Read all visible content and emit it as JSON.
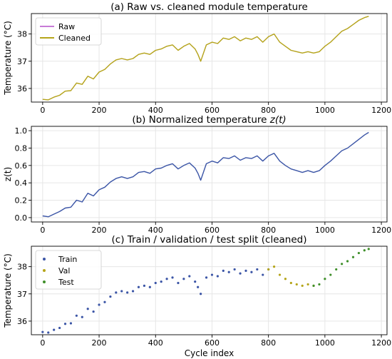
{
  "colors": {
    "raw": "#c77bd6",
    "cleaned": "#b5a51a",
    "normalized": "#3b55a6",
    "train": "#3b55a6",
    "val": "#b5a51a",
    "test": "#3f8f2a"
  },
  "chart_data": [
    {
      "type": "line",
      "title": "(a) Raw vs. cleaned module temperature",
      "xlabel": "",
      "ylabel": "Temperature (°C)",
      "xlim": [
        -40,
        1220
      ],
      "ylim": [
        35.5,
        38.75
      ],
      "xticks": [
        0,
        200,
        400,
        600,
        800,
        1000,
        1200
      ],
      "yticks": [
        36,
        37,
        38
      ],
      "xtick_labels": [
        "0",
        "200",
        "400",
        "600",
        "800",
        "1000",
        "1200"
      ],
      "ytick_labels": [
        "36",
        "37",
        "38"
      ],
      "grid": true,
      "legend": "top-left",
      "legend_entries": [
        "Raw",
        "Cleaned"
      ],
      "series": [
        {
          "name": "Raw",
          "x": [
            0,
            20,
            40,
            60,
            80,
            100,
            120,
            140,
            160,
            180,
            200,
            220,
            240,
            260,
            280,
            300,
            320,
            340,
            360,
            380,
            400,
            420,
            440,
            460,
            480,
            500,
            520,
            540,
            550,
            560,
            580,
            600,
            620,
            640,
            660,
            680,
            700,
            720,
            740,
            760,
            780,
            800,
            820,
            840,
            860,
            880,
            900,
            920,
            940,
            960,
            980,
            1000,
            1020,
            1040,
            1060,
            1080,
            1100,
            1120,
            1140,
            1155
          ],
          "y": [
            35.6,
            35.58,
            35.68,
            35.75,
            35.9,
            35.92,
            36.2,
            36.15,
            36.45,
            36.35,
            36.6,
            36.7,
            36.9,
            37.05,
            37.1,
            37.05,
            37.1,
            37.25,
            37.3,
            37.25,
            37.4,
            37.45,
            37.55,
            37.6,
            37.4,
            37.55,
            37.65,
            37.45,
            37.25,
            37.0,
            37.6,
            37.7,
            37.65,
            37.85,
            37.8,
            37.9,
            37.75,
            37.85,
            37.8,
            37.9,
            37.7,
            37.9,
            38.0,
            37.7,
            37.55,
            37.4,
            37.35,
            37.3,
            37.35,
            37.3,
            37.35,
            37.55,
            37.7,
            37.9,
            38.1,
            38.2,
            38.35,
            38.5,
            38.6,
            38.65
          ]
        },
        {
          "name": "Cleaned",
          "x": [
            0,
            20,
            40,
            60,
            80,
            100,
            120,
            140,
            160,
            180,
            200,
            220,
            240,
            260,
            280,
            300,
            320,
            340,
            360,
            380,
            400,
            420,
            440,
            460,
            480,
            500,
            520,
            540,
            550,
            560,
            580,
            600,
            620,
            640,
            660,
            680,
            700,
            720,
            740,
            760,
            780,
            800,
            820,
            840,
            860,
            880,
            900,
            920,
            940,
            960,
            980,
            1000,
            1020,
            1040,
            1060,
            1080,
            1100,
            1120,
            1140,
            1155
          ],
          "y": [
            35.6,
            35.58,
            35.68,
            35.75,
            35.9,
            35.92,
            36.2,
            36.15,
            36.45,
            36.35,
            36.6,
            36.7,
            36.9,
            37.05,
            37.1,
            37.05,
            37.1,
            37.25,
            37.3,
            37.25,
            37.4,
            37.45,
            37.55,
            37.6,
            37.4,
            37.55,
            37.65,
            37.45,
            37.25,
            37.0,
            37.6,
            37.7,
            37.65,
            37.85,
            37.8,
            37.9,
            37.75,
            37.85,
            37.8,
            37.9,
            37.7,
            37.9,
            38.0,
            37.7,
            37.55,
            37.4,
            37.35,
            37.3,
            37.35,
            37.3,
            37.35,
            37.55,
            37.7,
            37.9,
            38.1,
            38.2,
            38.35,
            38.5,
            38.6,
            38.65
          ]
        }
      ]
    },
    {
      "type": "line",
      "title": "(b) Normalized temperature ",
      "title_math": "z(t)",
      "xlabel": "",
      "ylabel": "z(t)",
      "xlim": [
        -40,
        1220
      ],
      "ylim": [
        -0.05,
        1.05
      ],
      "xticks": [
        0,
        200,
        400,
        600,
        800,
        1000,
        1200
      ],
      "yticks": [
        0.0,
        0.2,
        0.4,
        0.6,
        0.8,
        1.0
      ],
      "xtick_labels": [
        "0",
        "200",
        "400",
        "600",
        "800",
        "1000",
        "1200"
      ],
      "ytick_labels": [
        "0.0",
        "0.2",
        "0.4",
        "0.6",
        "0.8",
        "1.0"
      ],
      "grid": true,
      "series": [
        {
          "x": [
            0,
            20,
            40,
            60,
            80,
            100,
            120,
            140,
            160,
            180,
            200,
            220,
            240,
            260,
            280,
            300,
            320,
            340,
            360,
            380,
            400,
            420,
            440,
            460,
            480,
            500,
            520,
            540,
            550,
            560,
            580,
            600,
            620,
            640,
            660,
            680,
            700,
            720,
            740,
            760,
            780,
            800,
            820,
            840,
            860,
            880,
            900,
            920,
            940,
            960,
            980,
            1000,
            1020,
            1040,
            1060,
            1080,
            1100,
            1120,
            1140,
            1155
          ],
          "y": [
            0.02,
            0.01,
            0.04,
            0.07,
            0.11,
            0.12,
            0.2,
            0.18,
            0.28,
            0.25,
            0.32,
            0.35,
            0.41,
            0.45,
            0.47,
            0.45,
            0.47,
            0.52,
            0.53,
            0.51,
            0.56,
            0.57,
            0.6,
            0.62,
            0.56,
            0.6,
            0.63,
            0.57,
            0.51,
            0.43,
            0.62,
            0.65,
            0.63,
            0.69,
            0.68,
            0.71,
            0.66,
            0.69,
            0.68,
            0.71,
            0.65,
            0.71,
            0.74,
            0.65,
            0.6,
            0.56,
            0.54,
            0.52,
            0.54,
            0.52,
            0.54,
            0.6,
            0.65,
            0.71,
            0.77,
            0.8,
            0.85,
            0.9,
            0.95,
            0.98
          ]
        }
      ]
    },
    {
      "type": "scatter",
      "title": "(c) Train / validation / test split (cleaned)",
      "xlabel": "Cycle index",
      "ylabel": "Temperature (°C)",
      "xlim": [
        -40,
        1220
      ],
      "ylim": [
        35.5,
        38.75
      ],
      "xticks": [
        0,
        200,
        400,
        600,
        800,
        1000,
        1200
      ],
      "yticks": [
        36,
        37,
        38
      ],
      "xtick_labels": [
        "0",
        "200",
        "400",
        "600",
        "800",
        "1000",
        "1200"
      ],
      "ytick_labels": [
        "36",
        "37",
        "38"
      ],
      "grid": true,
      "legend": "top-left",
      "legend_entries": [
        "Train",
        "Val",
        "Test"
      ],
      "series": [
        {
          "name": "Train",
          "x": [
            0,
            20,
            40,
            60,
            80,
            100,
            120,
            140,
            160,
            180,
            200,
            220,
            240,
            260,
            280,
            300,
            320,
            340,
            360,
            380,
            400,
            420,
            440,
            460,
            480,
            500,
            520,
            540,
            550,
            560,
            580,
            600,
            620,
            640,
            660,
            680,
            700,
            720,
            740,
            760,
            780,
            800
          ],
          "y": [
            35.6,
            35.58,
            35.68,
            35.75,
            35.9,
            35.92,
            36.2,
            36.15,
            36.45,
            36.35,
            36.6,
            36.7,
            36.9,
            37.05,
            37.1,
            37.05,
            37.1,
            37.25,
            37.3,
            37.25,
            37.4,
            37.45,
            37.55,
            37.6,
            37.4,
            37.55,
            37.65,
            37.45,
            37.25,
            37.0,
            37.6,
            37.7,
            37.65,
            37.85,
            37.8,
            37.9,
            37.75,
            37.85,
            37.8,
            37.9,
            37.7,
            37.9
          ]
        },
        {
          "name": "Val",
          "x": [
            800,
            820,
            840,
            860,
            880,
            900,
            920,
            940,
            960
          ],
          "y": [
            37.9,
            38.0,
            37.7,
            37.55,
            37.4,
            37.35,
            37.3,
            37.35,
            37.3
          ]
        },
        {
          "name": "Test",
          "x": [
            960,
            980,
            1000,
            1020,
            1040,
            1060,
            1080,
            1100,
            1120,
            1140,
            1155
          ],
          "y": [
            37.3,
            37.35,
            37.55,
            37.7,
            37.9,
            38.1,
            38.2,
            38.35,
            38.5,
            38.6,
            38.65
          ]
        }
      ]
    }
  ]
}
